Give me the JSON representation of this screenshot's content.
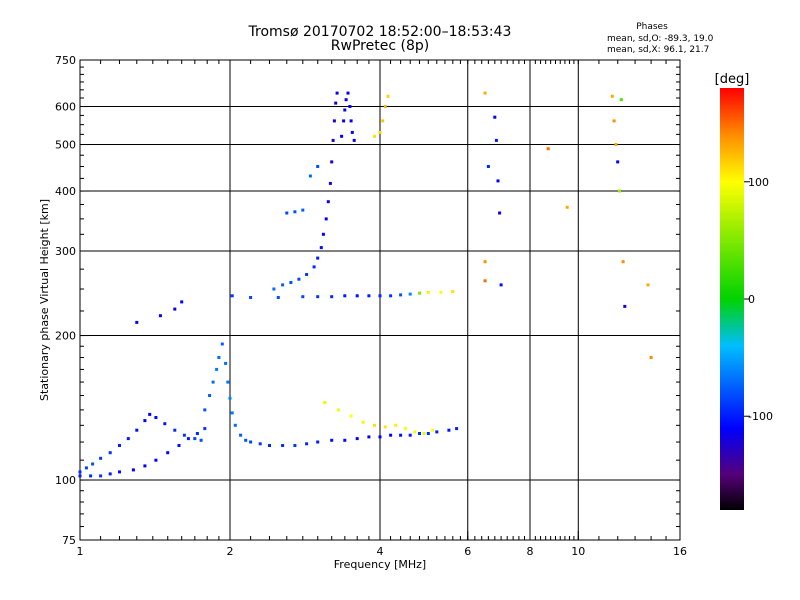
{
  "header": {
    "title": "Tromsø 20170702 18:52:00–18:53:43",
    "subtitle": "RwPretec (8p)"
  },
  "phase_stats": {
    "heading": "Phases",
    "line1": "mean, sd,O: -89.3, 19.0",
    "line2": "mean, sd,X:  96.1, 21.7"
  },
  "chart_data": {
    "type": "scatter",
    "title": "Tromsø 20170702 18:52:00–18:53:43",
    "subtitle": "RwPretec (8p)",
    "xlabel": "Frequency [MHz]",
    "ylabel": "Stationary phase Virtual Height [km]",
    "xscale": "log",
    "yscale": "log",
    "xlim": [
      1,
      16
    ],
    "ylim": [
      75,
      750
    ],
    "x_ticks": [
      1,
      2,
      4,
      6,
      8,
      10,
      16
    ],
    "y_ticks": [
      75,
      100,
      200,
      300,
      400,
      500,
      600,
      750
    ],
    "x_major_grid": [
      2,
      4,
      6,
      8,
      10
    ],
    "y_major_grid": [
      100,
      200,
      300,
      400,
      500,
      600
    ],
    "grid": true,
    "colorbar": {
      "label": "[deg]",
      "range": [
        -180,
        180
      ],
      "ticks": [
        100,
        0,
        -100
      ]
    },
    "series": [
      {
        "points": [
          [
            1.0,
            104,
            -95
          ],
          [
            1.03,
            106,
            -85
          ],
          [
            1.06,
            108,
            -80
          ],
          [
            1.1,
            111,
            -88
          ],
          [
            1.15,
            114,
            -92
          ],
          [
            1.2,
            118,
            -98
          ],
          [
            1.25,
            122,
            -100
          ],
          [
            1.3,
            127,
            -105
          ],
          [
            1.35,
            133,
            -110
          ],
          [
            1.38,
            137,
            -112
          ],
          [
            1.42,
            135,
            -108
          ],
          [
            1.48,
            131,
            -100
          ],
          [
            1.55,
            127,
            -95
          ],
          [
            1.62,
            124,
            -90
          ],
          [
            1.7,
            122,
            -85
          ],
          [
            1.75,
            121,
            -80
          ]
        ]
      },
      {
        "points": [
          [
            1.0,
            102,
            -100
          ],
          [
            1.05,
            102,
            -95
          ],
          [
            1.1,
            102,
            -90
          ],
          [
            1.15,
            103,
            -100
          ],
          [
            1.2,
            104,
            -105
          ],
          [
            1.28,
            105,
            -110
          ],
          [
            1.35,
            107,
            -112
          ],
          [
            1.42,
            110,
            -110
          ],
          [
            1.5,
            114,
            -108
          ],
          [
            1.58,
            118,
            -105
          ],
          [
            1.65,
            122,
            -100
          ],
          [
            1.72,
            125,
            -95
          ],
          [
            1.78,
            128,
            -90
          ]
        ]
      },
      {
        "points": [
          [
            1.78,
            140,
            -80
          ],
          [
            1.82,
            150,
            -75
          ],
          [
            1.85,
            160,
            -70
          ],
          [
            1.88,
            170,
            -65
          ],
          [
            1.9,
            180,
            -70
          ],
          [
            1.93,
            192,
            -75
          ],
          [
            1.96,
            175,
            -70
          ],
          [
            1.98,
            160,
            -65
          ],
          [
            2.0,
            148,
            -60
          ],
          [
            2.02,
            138,
            -65
          ],
          [
            2.05,
            130,
            -70
          ],
          [
            2.1,
            124,
            -75
          ],
          [
            2.15,
            121,
            -80
          ],
          [
            2.2,
            120,
            -85
          ],
          [
            2.3,
            119,
            -90
          ],
          [
            2.4,
            118,
            -95
          ],
          [
            2.55,
            118,
            -95
          ],
          [
            2.7,
            118,
            -90
          ],
          [
            2.85,
            119,
            -95
          ],
          [
            3.0,
            120,
            -100
          ],
          [
            3.2,
            121,
            -105
          ],
          [
            3.4,
            121,
            -108
          ],
          [
            3.6,
            122,
            -110
          ],
          [
            3.8,
            123,
            -112
          ],
          [
            4.0,
            123,
            -110
          ],
          [
            4.2,
            124,
            -108
          ],
          [
            4.4,
            124,
            -105
          ],
          [
            4.6,
            124,
            -100
          ],
          [
            4.8,
            125,
            -95
          ],
          [
            5.0,
            125,
            -95
          ],
          [
            5.2,
            126,
            -100
          ],
          [
            5.5,
            127,
            -105
          ],
          [
            5.7,
            128,
            -100
          ]
        ]
      },
      {
        "points": [
          [
            3.1,
            145,
            90
          ],
          [
            3.3,
            140,
            95
          ],
          [
            3.5,
            136,
            100
          ],
          [
            3.7,
            132,
            105
          ],
          [
            3.9,
            130,
            110
          ],
          [
            4.1,
            129,
            108
          ],
          [
            4.3,
            130,
            105
          ],
          [
            4.5,
            128,
            100
          ],
          [
            4.7,
            126,
            95
          ],
          [
            4.9,
            125,
            90
          ],
          [
            5.1,
            127,
            100
          ]
        ]
      },
      {
        "points": [
          [
            1.3,
            213,
            -110
          ],
          [
            1.45,
            220,
            -112
          ],
          [
            1.55,
            227,
            -115
          ],
          [
            1.6,
            235,
            -110
          ]
        ]
      },
      {
        "points": [
          [
            2.02,
            242,
            -90
          ],
          [
            2.2,
            240,
            -85
          ],
          [
            2.5,
            240,
            -80
          ],
          [
            2.8,
            241,
            -85
          ],
          [
            3.0,
            241,
            -90
          ],
          [
            3.2,
            241,
            -95
          ],
          [
            3.4,
            242,
            -100
          ],
          [
            3.6,
            242,
            -105
          ],
          [
            3.8,
            242,
            -100
          ],
          [
            4.0,
            242,
            -95
          ],
          [
            4.2,
            242,
            -90
          ],
          [
            4.4,
            243,
            -80
          ],
          [
            4.6,
            244,
            -60
          ],
          [
            4.8,
            245,
            50
          ],
          [
            5.0,
            246,
            90
          ],
          [
            5.3,
            246,
            100
          ],
          [
            5.6,
            247,
            110
          ]
        ]
      },
      {
        "points": [
          [
            2.45,
            250,
            -70
          ],
          [
            2.55,
            255,
            -75
          ],
          [
            2.65,
            258,
            -80
          ],
          [
            2.75,
            262,
            -85
          ],
          [
            2.85,
            268,
            -90
          ],
          [
            2.95,
            278,
            -95
          ],
          [
            3.0,
            290,
            -100
          ],
          [
            3.05,
            305,
            -105
          ],
          [
            3.08,
            325,
            -110
          ],
          [
            3.12,
            350,
            -112
          ],
          [
            3.15,
            380,
            -115
          ],
          [
            3.18,
            415,
            -118
          ],
          [
            3.2,
            460,
            -120
          ],
          [
            3.22,
            510,
            -122
          ],
          [
            3.24,
            560,
            -120
          ],
          [
            3.26,
            610,
            -118
          ],
          [
            3.28,
            640,
            -115
          ]
        ]
      },
      {
        "points": [
          [
            3.35,
            520,
            -110
          ],
          [
            3.38,
            560,
            -112
          ],
          [
            3.4,
            590,
            -115
          ],
          [
            3.42,
            620,
            -112
          ],
          [
            3.45,
            640,
            -110
          ],
          [
            3.48,
            600,
            -108
          ],
          [
            3.5,
            560,
            -110
          ],
          [
            3.52,
            530,
            -112
          ],
          [
            3.55,
            510,
            -115
          ]
        ]
      },
      {
        "points": [
          [
            2.6,
            360,
            -85
          ],
          [
            2.7,
            362,
            -80
          ],
          [
            2.8,
            365,
            -75
          ],
          [
            2.9,
            430,
            -70
          ],
          [
            3.0,
            450,
            -80
          ]
        ]
      },
      {
        "points": [
          [
            3.9,
            520,
            110
          ],
          [
            4.0,
            530,
            115
          ],
          [
            4.05,
            560,
            120
          ],
          [
            4.1,
            600,
            125
          ],
          [
            4.15,
            630,
            115
          ]
        ]
      },
      {
        "points": [
          [
            6.5,
            640,
            130
          ],
          [
            6.5,
            260,
            150
          ],
          [
            6.5,
            285,
            140
          ],
          [
            6.6,
            450,
            -95
          ],
          [
            6.8,
            570,
            -110
          ],
          [
            6.85,
            510,
            -100
          ],
          [
            6.9,
            420,
            -110
          ],
          [
            6.95,
            360,
            -120
          ],
          [
            7.0,
            255,
            -105
          ],
          [
            8.7,
            490,
            150
          ],
          [
            9.5,
            370,
            130
          ],
          [
            11.7,
            630,
            130
          ],
          [
            11.8,
            560,
            140
          ],
          [
            11.9,
            500,
            130
          ],
          [
            12.0,
            460,
            -110
          ],
          [
            12.1,
            400,
            60
          ],
          [
            12.2,
            620,
            30
          ],
          [
            12.3,
            285,
            140
          ],
          [
            12.4,
            230,
            -120
          ],
          [
            13.8,
            255,
            130
          ],
          [
            14.0,
            180,
            140
          ]
        ]
      }
    ]
  }
}
